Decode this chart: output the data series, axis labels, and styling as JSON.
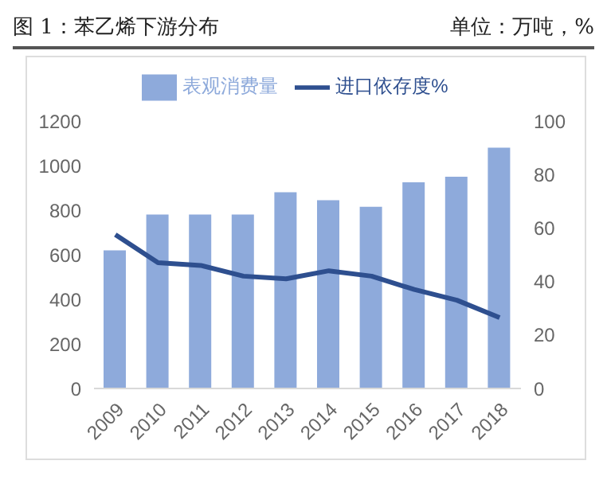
{
  "chart_data": {
    "type": "bar",
    "title": "图 1：苯乙烯下游分布",
    "subtitle": "单位：万吨，%",
    "categories": [
      "2009",
      "2010",
      "2011",
      "2012",
      "2013",
      "2014",
      "2015",
      "2016",
      "2017",
      "2018"
    ],
    "series": [
      {
        "name": "表观消费量",
        "color": "#8eaadb",
        "values": [
          620,
          780,
          780,
          780,
          880,
          845,
          815,
          925,
          950,
          1080
        ]
      },
      {
        "name": "进口依存度%",
        "type": "line",
        "axis": "y2",
        "color": "#2e4f8f",
        "values": [
          57.5,
          47,
          46,
          42,
          41,
          44,
          42,
          37,
          33,
          26.5
        ]
      }
    ],
    "ylim": [
      0,
      1200
    ],
    "yticks": [
      0,
      200,
      400,
      600,
      800,
      1000,
      1200
    ],
    "y2lim": [
      0,
      100
    ],
    "y2ticks": [
      0,
      20,
      40,
      60,
      80,
      100
    ],
    "grid": false,
    "legend": "top",
    "marker": "none",
    "line_style": "solid"
  }
}
